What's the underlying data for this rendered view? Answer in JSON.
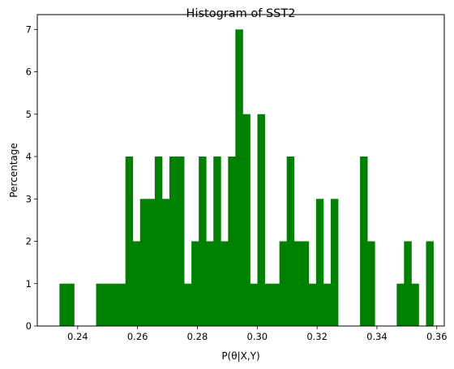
{
  "chart_data": {
    "type": "bar",
    "title": "Histogram of SST2",
    "xlabel": "P(θ|X,Y)",
    "ylabel": "Percentage",
    "xlim": [
      0.2265,
      0.3625
    ],
    "ylim": [
      0,
      7.35
    ],
    "bin_start": 0.2339,
    "bin_width": 0.00245,
    "values": [
      1,
      1,
      0,
      0,
      0,
      1,
      1,
      1,
      1,
      4,
      2,
      3,
      3,
      4,
      3,
      4,
      4,
      1,
      2,
      4,
      2,
      4,
      2,
      4,
      7,
      5,
      1,
      5,
      1,
      1,
      2,
      4,
      2,
      2,
      1,
      3,
      1,
      3,
      0,
      0,
      0,
      4,
      2,
      0,
      0,
      0,
      1,
      2,
      1,
      0,
      2
    ],
    "xticks": [
      0.24,
      0.26,
      0.28,
      0.3,
      0.32,
      0.34,
      0.36
    ],
    "xtick_labels": [
      "0.24",
      "0.26",
      "0.28",
      "0.30",
      "0.32",
      "0.34",
      "0.36"
    ],
    "yticks": [
      0,
      1,
      2,
      3,
      4,
      5,
      6,
      7
    ],
    "ytick_labels": [
      "0",
      "1",
      "2",
      "3",
      "4",
      "5",
      "6",
      "7"
    ],
    "bar_color": "#008000",
    "grid": false,
    "legend": "none"
  }
}
